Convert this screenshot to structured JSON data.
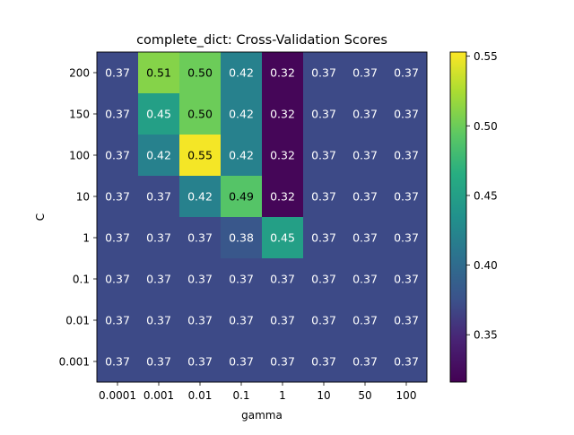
{
  "chart_data": {
    "type": "heatmap",
    "title": "complete_dict: Cross-Validation Scores",
    "xlabel": "gamma",
    "ylabel": "C",
    "x_categories": [
      "0.0001",
      "0.001",
      "0.01",
      "0.1",
      "1",
      "10",
      "50",
      "100"
    ],
    "y_categories_top_to_bottom": [
      "200",
      "150",
      "100",
      "10",
      "1",
      "0.1",
      "0.01",
      "0.001"
    ],
    "values_top_to_bottom": [
      [
        0.37,
        0.51,
        0.5,
        0.42,
        0.32,
        0.37,
        0.37,
        0.37
      ],
      [
        0.37,
        0.45,
        0.5,
        0.42,
        0.32,
        0.37,
        0.37,
        0.37
      ],
      [
        0.37,
        0.42,
        0.55,
        0.42,
        0.32,
        0.37,
        0.37,
        0.37
      ],
      [
        0.37,
        0.37,
        0.42,
        0.49,
        0.32,
        0.37,
        0.37,
        0.37
      ],
      [
        0.37,
        0.37,
        0.37,
        0.38,
        0.45,
        0.37,
        0.37,
        0.37
      ],
      [
        0.37,
        0.37,
        0.37,
        0.37,
        0.37,
        0.37,
        0.37,
        0.37
      ],
      [
        0.37,
        0.37,
        0.37,
        0.37,
        0.37,
        0.37,
        0.37,
        0.37
      ],
      [
        0.37,
        0.37,
        0.37,
        0.37,
        0.37,
        0.37,
        0.37,
        0.37
      ]
    ],
    "colormap": "viridis",
    "colorbar": {
      "vmin": 0.316,
      "vmax": 0.553,
      "ticks": [
        0.35,
        0.4,
        0.45,
        0.5,
        0.55
      ],
      "tick_labels": [
        "0.35",
        "0.40",
        "0.45",
        "0.50",
        "0.55"
      ]
    },
    "grid": false,
    "legend": "none"
  }
}
